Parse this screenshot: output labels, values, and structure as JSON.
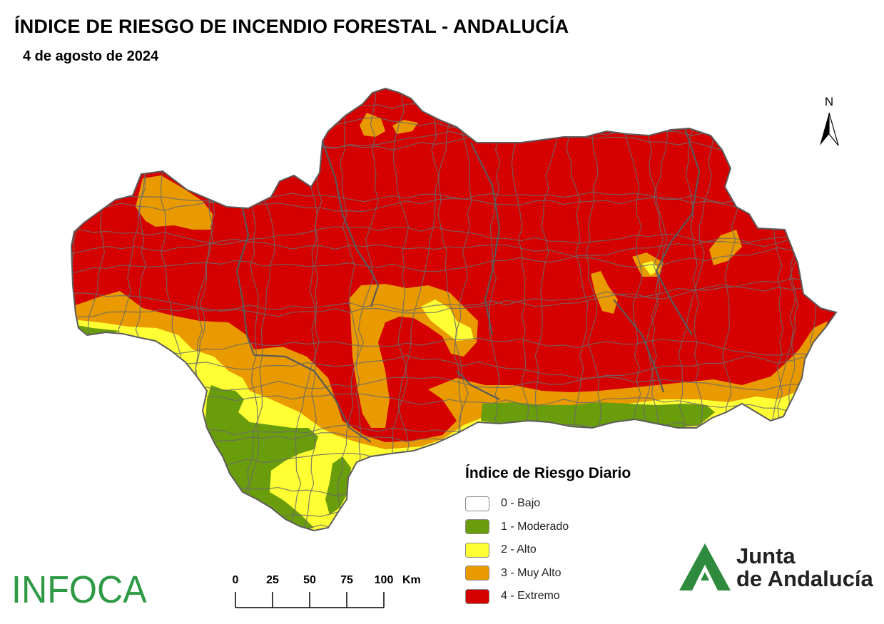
{
  "header": {
    "title": "ÍNDICE DE RIESGO DE INCENDIO FORESTAL - ANDALUCÍA",
    "date": "4 de agosto de 2024"
  },
  "north_arrow": {
    "label": "N"
  },
  "legend": {
    "title": "Índice de Riesgo Diario",
    "items": [
      {
        "label": "0 - Bajo",
        "color": "#ffffff"
      },
      {
        "label": "1 - Moderado",
        "color": "#6a9d0c"
      },
      {
        "label": "2 - Alto",
        "color": "#ffff33"
      },
      {
        "label": "3 - Muy Alto",
        "color": "#e89a00"
      },
      {
        "label": "4 - Extremo",
        "color": "#d50000"
      }
    ]
  },
  "scale_bar": {
    "ticks": [
      "0",
      "25",
      "50",
      "75",
      "100"
    ],
    "unit": "Km"
  },
  "logos": {
    "infoca": "INFOCA",
    "junta_line1": "Junta",
    "junta_line2": "de Andalucía"
  },
  "map_colors": {
    "border": "#6b6b6b",
    "extremo": "#d50000",
    "muy_alto": "#e89a00",
    "alto": "#ffff33",
    "moderado": "#6a9d0c"
  }
}
